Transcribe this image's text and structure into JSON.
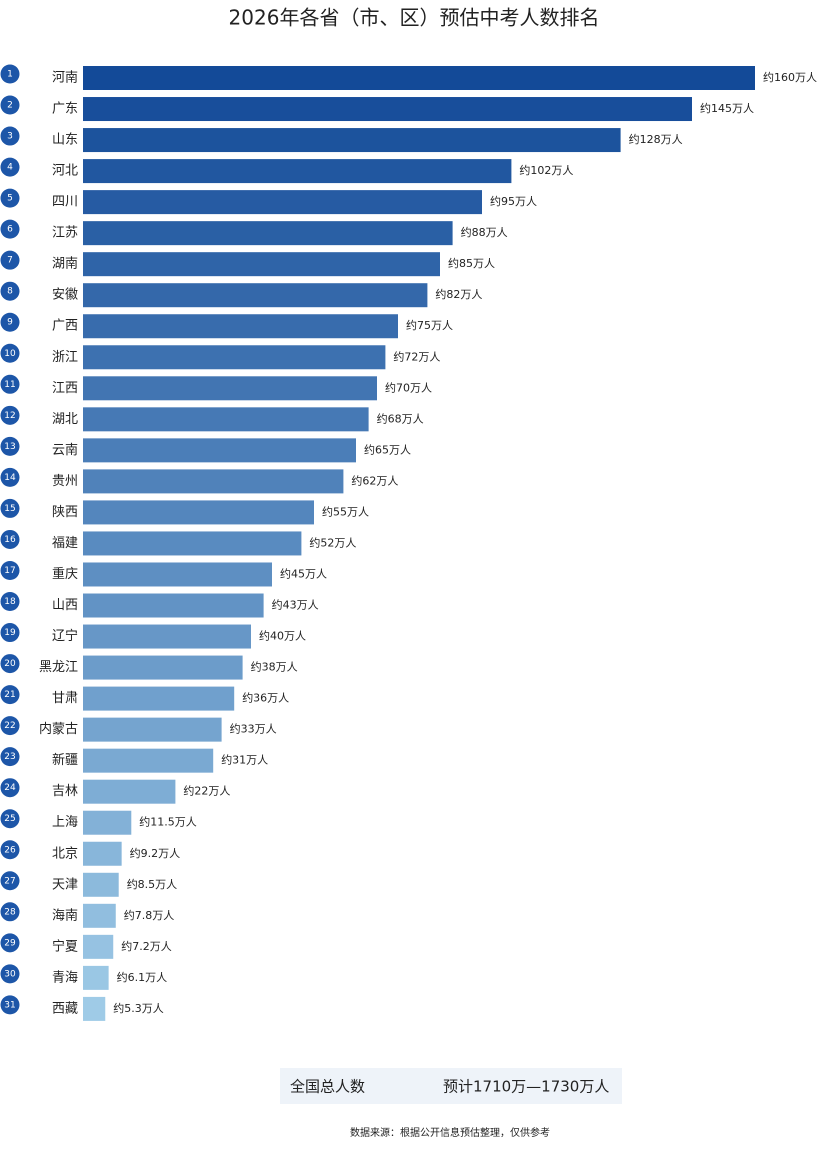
{
  "chart_data": {
    "type": "bar",
    "orientation": "horizontal",
    "title": "2026年各省（市、区）预估中考人数排名",
    "ranks": [
      1,
      2,
      3,
      4,
      5,
      6,
      7,
      8,
      9,
      10,
      11,
      12,
      13,
      14,
      15,
      16,
      17,
      18,
      19,
      20,
      21,
      22,
      23,
      24,
      25,
      26,
      27,
      28,
      29,
      30,
      31
    ],
    "categories": [
      "河南",
      "广东",
      "山东",
      "河北",
      "四川",
      "江苏",
      "湖南",
      "安徽",
      "广西",
      "浙江",
      "江西",
      "湖北",
      "云南",
      "贵州",
      "陕西",
      "福建",
      "重庆",
      "山西",
      "辽宁",
      "黑龙江",
      "甘肃",
      "内蒙古",
      "新疆",
      "吉林",
      "上海",
      "北京",
      "天津",
      "海南",
      "宁夏",
      "青海",
      "西藏"
    ],
    "values": [
      160,
      145,
      128,
      102,
      95,
      88,
      85,
      82,
      75,
      72,
      70,
      68,
      65,
      62,
      55,
      52,
      45,
      43,
      40,
      38,
      36,
      33,
      31,
      22,
      11.5,
      9.2,
      8.5,
      7.8,
      7.2,
      6.1,
      5.3
    ],
    "value_labels": [
      "约160万人",
      "约145万人",
      "约128万人",
      "约102万人",
      "约95万人",
      "约88万人",
      "约85万人",
      "约82万人",
      "约75万人",
      "约72万人",
      "约70万人",
      "约68万人",
      "约65万人",
      "约62万人",
      "约55万人",
      "约52万人",
      "约45万人",
      "约43万人",
      "约40万人",
      "约38万人",
      "约36万人",
      "约33万人",
      "约31万人",
      "约22万人",
      "约11.5万人",
      "约9.2万人",
      "约8.5万人",
      "约7.8万人",
      "约7.2万人",
      "约6.1万人",
      "约5.3万人"
    ],
    "color_range": [
      "#134a98",
      "#9fcbe7"
    ],
    "rank_color": "#1d56a8",
    "summary": {
      "label": "全国总人数",
      "value": "预计1710万—1730万人"
    },
    "source": "数据来源：根据公开信息预估整理，仅供参考"
  }
}
